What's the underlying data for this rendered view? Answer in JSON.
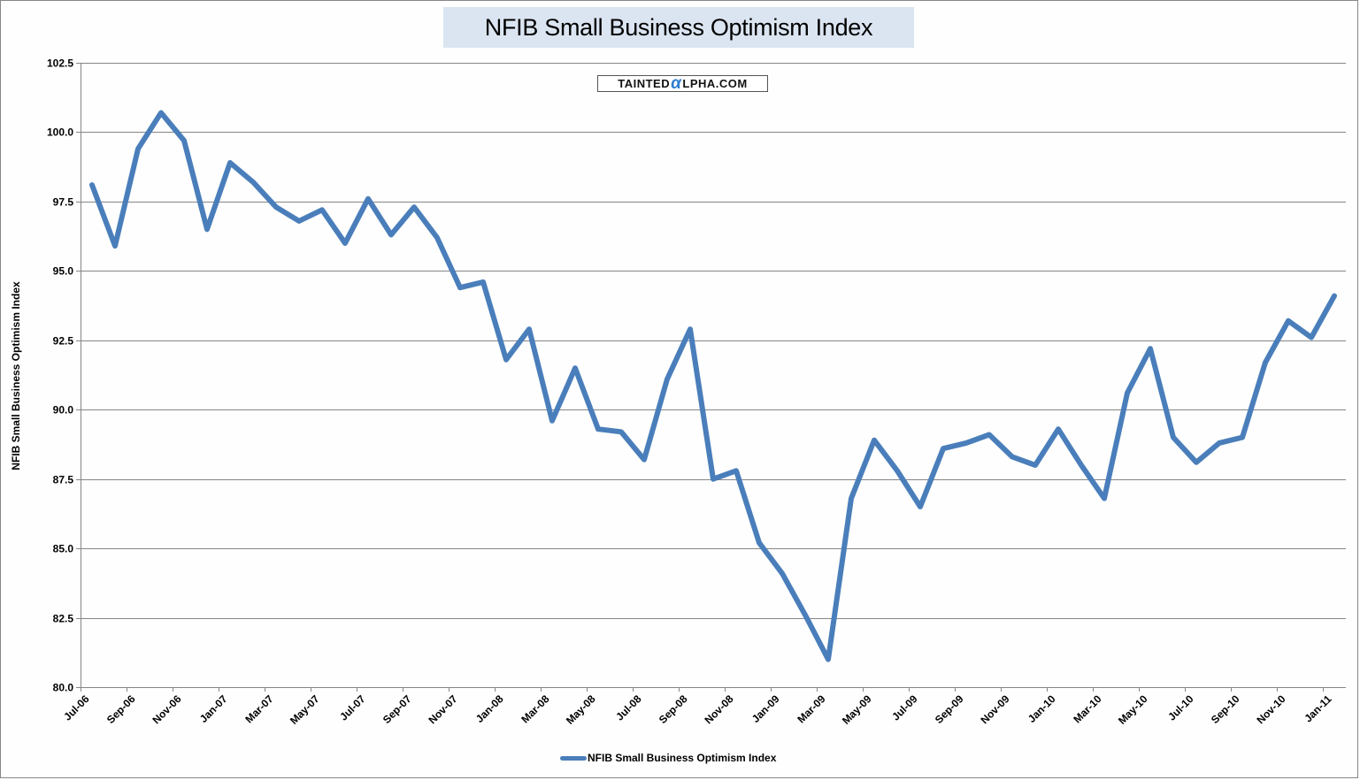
{
  "chart_data": {
    "type": "line",
    "title": "NFIB Small Business Optimism Index",
    "watermark": "TAINTEDαLPHA.COM",
    "xlabel": "",
    "ylabel": "NFIB Small Business Optimism Index",
    "ylim": [
      80.0,
      102.5
    ],
    "yticks": [
      "80.0",
      "82.5",
      "85.0",
      "87.5",
      "90.0",
      "92.5",
      "95.0",
      "97.5",
      "100.0",
      "102.5"
    ],
    "grid": true,
    "legend_position": "bottom",
    "line_color": "#4a7ebb",
    "x": [
      "Jul-06",
      "Aug-06",
      "Sep-06",
      "Oct-06",
      "Nov-06",
      "Dec-06",
      "Jan-07",
      "Feb-07",
      "Mar-07",
      "Apr-07",
      "May-07",
      "Jun-07",
      "Jul-07",
      "Aug-07",
      "Sep-07",
      "Oct-07",
      "Nov-07",
      "Dec-07",
      "Jan-08",
      "Feb-08",
      "Mar-08",
      "Apr-08",
      "May-08",
      "Jun-08",
      "Jul-08",
      "Aug-08",
      "Sep-08",
      "Oct-08",
      "Nov-08",
      "Dec-08",
      "Jan-09",
      "Feb-09",
      "Mar-09",
      "Apr-09",
      "May-09",
      "Jun-09",
      "Jul-09",
      "Aug-09",
      "Sep-09",
      "Oct-09",
      "Nov-09",
      "Dec-09",
      "Jan-10",
      "Feb-10",
      "Mar-10",
      "Apr-10",
      "May-10",
      "Jun-10",
      "Jul-10",
      "Aug-10",
      "Sep-10",
      "Oct-10",
      "Nov-10",
      "Dec-10",
      "Jan-11"
    ],
    "xtick_labels": [
      "Jul-06",
      "Sep-06",
      "Nov-06",
      "Jan-07",
      "Mar-07",
      "May-07",
      "Jul-07",
      "Sep-07",
      "Nov-07",
      "Jan-08",
      "Mar-08",
      "May-08",
      "Jul-08",
      "Sep-08",
      "Nov-08",
      "Jan-09",
      "Mar-09",
      "May-09",
      "Jul-09",
      "Sep-09",
      "Nov-09",
      "Jan-10",
      "Mar-10",
      "May-10",
      "Jul-10",
      "Sep-10",
      "Nov-10",
      "Jan-11"
    ],
    "series": [
      {
        "name": "NFIB Small Business Optimism Index",
        "values": [
          98.1,
          95.9,
          99.4,
          100.7,
          99.7,
          96.5,
          98.9,
          98.2,
          97.3,
          96.8,
          97.2,
          96.0,
          97.6,
          96.3,
          97.3,
          96.2,
          94.4,
          94.6,
          91.8,
          92.9,
          89.6,
          91.5,
          89.3,
          89.2,
          88.2,
          91.1,
          92.9,
          87.5,
          87.8,
          85.2,
          84.1,
          82.6,
          81.0,
          86.8,
          88.9,
          87.8,
          86.5,
          88.6,
          88.8,
          89.1,
          88.3,
          88.0,
          89.3,
          88.0,
          86.8,
          90.6,
          92.2,
          89.0,
          88.1,
          88.8,
          89.0,
          91.7,
          93.2,
          92.6,
          94.1
        ]
      }
    ]
  }
}
